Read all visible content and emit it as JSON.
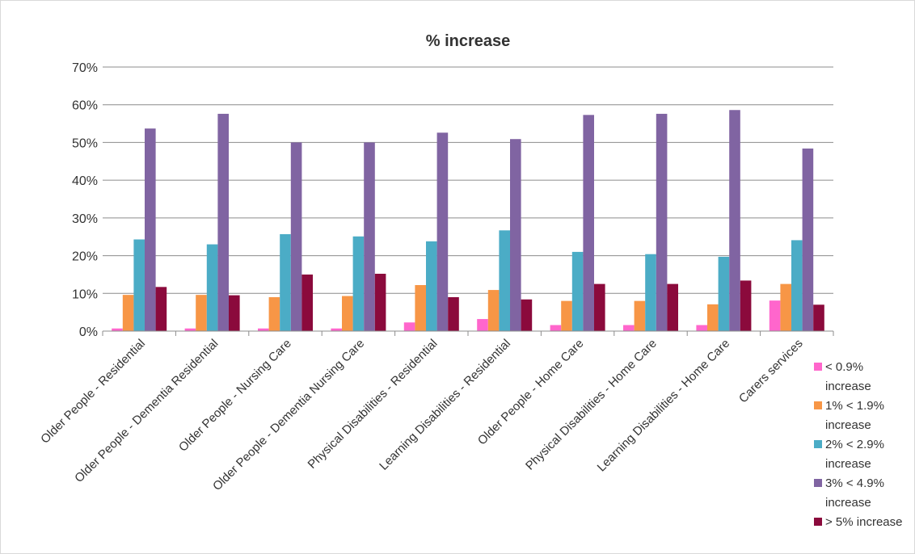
{
  "chart_data": {
    "type": "bar",
    "title": "% increase",
    "xlabel": "",
    "ylabel": "",
    "ylim": [
      0,
      70
    ],
    "yticks": [
      "0%",
      "10%",
      "20%",
      "30%",
      "40%",
      "50%",
      "60%",
      "70%"
    ],
    "grid": true,
    "legend_position": "right",
    "categories": [
      "Older People - Residential",
      "Older People - Dementia Residential",
      "Older People - Nursing Care",
      "Older People - Dementia Nursing Care",
      "Physical Disabilities - Residential",
      "Learning Disabilities - Residential",
      "Older People - Home Care",
      "Physical Disabilities - Home Care",
      "Learning Disabilities - Home Care",
      "Carers services"
    ],
    "series": [
      {
        "name": "< 0.9% increase",
        "color": "#ff66cc",
        "values": [
          0.7,
          0.7,
          0.7,
          0.7,
          2.3,
          3.2,
          1.6,
          1.6,
          1.6,
          8.1
        ]
      },
      {
        "name": "1% < 1.9% increase",
        "color": "#f79646",
        "values": [
          9.6,
          9.6,
          9.0,
          9.3,
          12.2,
          10.9,
          8.0,
          8.0,
          7.1,
          12.5
        ]
      },
      {
        "name": "2% < 2.9% increase",
        "color": "#4bacc6",
        "values": [
          24.3,
          23.0,
          25.7,
          25.1,
          23.8,
          26.7,
          21.0,
          20.4,
          19.7,
          24.1
        ]
      },
      {
        "name": "3% < 4.9% increase",
        "color": "#8064a2",
        "values": [
          53.7,
          57.6,
          50.0,
          50.0,
          52.6,
          50.9,
          57.3,
          57.6,
          58.6,
          48.4
        ]
      },
      {
        "name": "> 5% increase",
        "color": "#8b0a3c",
        "values": [
          11.7,
          9.5,
          15.0,
          15.2,
          9.0,
          8.4,
          12.5,
          12.5,
          13.4,
          7.0
        ]
      }
    ]
  }
}
